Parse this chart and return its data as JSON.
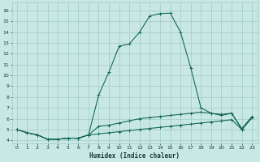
{
  "title": "",
  "xlabel": "Humidex (Indice chaleur)",
  "ylabel": "",
  "background_color": "#c8e8e4",
  "line_color": "#1a6b5a",
  "grid_color": "#a0ccc8",
  "x_ticks": [
    0,
    1,
    2,
    3,
    4,
    5,
    6,
    7,
    8,
    9,
    10,
    11,
    12,
    13,
    14,
    15,
    16,
    17,
    18,
    19,
    20,
    21,
    22,
    23
  ],
  "y_ticks": [
    4,
    5,
    6,
    7,
    8,
    9,
    10,
    11,
    12,
    13,
    14,
    15,
    16
  ],
  "ylim": [
    3.7,
    16.7
  ],
  "xlim": [
    -0.5,
    23.5
  ],
  "series_main": [
    5.0,
    4.7,
    4.5,
    4.1,
    4.1,
    4.2,
    4.2,
    4.5,
    8.2,
    10.3,
    12.7,
    12.9,
    14.0,
    15.5,
    15.7,
    15.75,
    14.0,
    10.7,
    7.0,
    6.5,
    6.3,
    6.5,
    5.0,
    6.1
  ],
  "series_mid": [
    5.0,
    4.7,
    4.5,
    4.1,
    4.1,
    4.2,
    4.2,
    4.5,
    5.3,
    5.4,
    5.6,
    5.8,
    6.0,
    6.1,
    6.2,
    6.3,
    6.4,
    6.5,
    6.6,
    6.5,
    6.4,
    6.5,
    5.1,
    6.2
  ],
  "series_low": [
    5.0,
    4.7,
    4.5,
    4.1,
    4.1,
    4.2,
    4.2,
    4.5,
    4.6,
    4.7,
    4.8,
    4.9,
    5.0,
    5.1,
    5.2,
    5.3,
    5.4,
    5.5,
    5.6,
    5.7,
    5.8,
    5.9,
    5.0,
    6.1
  ]
}
